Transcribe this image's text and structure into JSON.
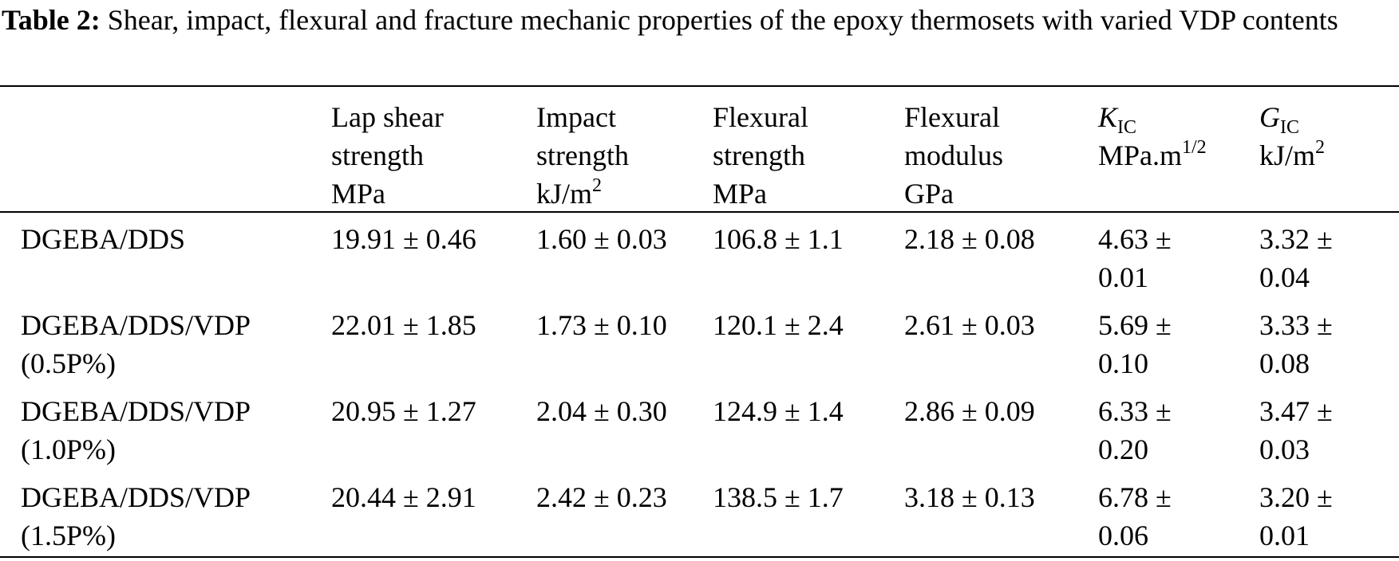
{
  "caption": {
    "label": "Table 2:",
    "text": " Shear, impact, flexural and fracture mechanic properties of the epoxy thermosets with varied VDP contents"
  },
  "header": {
    "lap_shear": [
      "Lap shear",
      "strength",
      "MPa"
    ],
    "impact": [
      "Impact",
      "strength",
      "kJ/m",
      "2"
    ],
    "flex_strength": [
      "Flexural",
      "strength",
      "MPa"
    ],
    "flex_modulus": [
      "Flexural",
      "modulus",
      "GPa"
    ],
    "kic": {
      "symbol": "K",
      "sub": "IC",
      "unit": "MPa.m",
      "sup": "1/2"
    },
    "gic": {
      "symbol": "G",
      "sub": "IC",
      "unit": "kJ/m",
      "sup": "2"
    }
  },
  "rows": [
    {
      "name": [
        "DGEBA/DDS",
        ""
      ],
      "lap_shear": "19.91 ± 0.46",
      "impact": "1.60 ± 0.03",
      "flex_strength": "106.8 ± 1.1",
      "flex_modulus": "2.18 ± 0.08",
      "kic": [
        "4.63 ±",
        "0.01"
      ],
      "gic": [
        "3.32 ±",
        "0.04"
      ]
    },
    {
      "name": [
        "DGEBA/DDS/VDP",
        "(0.5P%)"
      ],
      "lap_shear": "22.01 ± 1.85",
      "impact": "1.73 ± 0.10",
      "flex_strength": "120.1 ± 2.4",
      "flex_modulus": "2.61 ± 0.03",
      "kic": [
        "5.69 ±",
        "0.10"
      ],
      "gic": [
        "3.33 ±",
        "0.08"
      ]
    },
    {
      "name": [
        "DGEBA/DDS/VDP",
        "(1.0P%)"
      ],
      "lap_shear": "20.95 ± 1.27",
      "impact": "2.04 ± 0.30",
      "flex_strength": "124.9 ± 1.4",
      "flex_modulus": "2.86 ± 0.09",
      "kic": [
        "6.33 ±",
        "0.20"
      ],
      "gic": [
        "3.47 ±",
        "0.03"
      ]
    },
    {
      "name": [
        "DGEBA/DDS/VDP",
        "(1.5P%)"
      ],
      "lap_shear": "20.44 ± 2.91",
      "impact": "2.42 ± 0.23",
      "flex_strength": "138.5 ± 1.7",
      "flex_modulus": "3.18 ± 0.13",
      "kic": [
        "6.78 ±",
        "0.06"
      ],
      "gic": [
        "3.20 ±",
        "0.01"
      ]
    }
  ]
}
